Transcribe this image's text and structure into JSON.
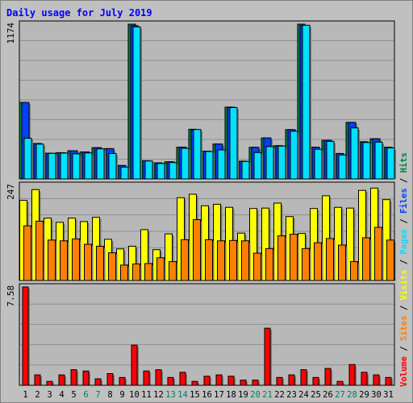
{
  "chart_data": {
    "type": "bar",
    "title": "Daily usage for July 2019",
    "categories": [
      "1",
      "2",
      "3",
      "4",
      "5",
      "6",
      "7",
      "8",
      "9",
      "10",
      "11",
      "12",
      "13",
      "14",
      "15",
      "16",
      "17",
      "18",
      "19",
      "20",
      "21",
      "22",
      "23",
      "24",
      "25",
      "26",
      "27",
      "28",
      "29",
      "30",
      "31"
    ],
    "weekend_days": [
      "6",
      "7",
      "13",
      "14",
      "20",
      "21",
      "27",
      "28"
    ],
    "legend": [
      "Volume",
      "Sites",
      "Visits",
      "Pages",
      "Files",
      "Hits"
    ],
    "legend_separator": "/",
    "panels": [
      {
        "id": "top",
        "max_label": "1174",
        "ylim": [
          0,
          1174
        ],
        "series": [
          {
            "name": "Hits",
            "color": "#008040",
            "values": [
              580,
              269,
              195,
              199,
              214,
              205,
              237,
              230,
              102,
              1174,
              138,
              122,
              130,
              241,
              377,
              211,
              265,
              545,
              135,
              240,
              311,
              252,
              374,
              1174,
              241,
              293,
              193,
              429,
              282,
              305,
              241
            ]
          },
          {
            "name": "Files",
            "color": "#0040ff",
            "values": [
              580,
              269,
              195,
              199,
              214,
              205,
              237,
              230,
              102,
              1163,
              138,
              122,
              130,
              241,
              371,
              211,
              265,
              545,
              135,
              240,
              311,
              252,
              374,
              1165,
              241,
              293,
              193,
              429,
              282,
              305,
              241
            ]
          },
          {
            "name": "Pages",
            "color": "#00e0ff",
            "values": [
              309,
              264,
              194,
              196,
              190,
              197,
              228,
              193,
              90,
              1153,
              136,
              117,
              124,
              232,
              375,
              208,
              220,
              541,
              133,
              200,
              245,
              249,
              362,
              1166,
              225,
              285,
              182,
              387,
              276,
              279,
              235
            ]
          }
        ]
      },
      {
        "id": "middle",
        "max_label": "247",
        "ylim": [
          0,
          247
        ],
        "series": [
          {
            "name": "Visits",
            "color": "#ffff00",
            "values": [
              208,
              236,
              162,
              151,
              162,
              153,
              164,
              107,
              82,
              89,
              132,
              80,
              121,
              215,
              224,
              194,
              198,
              190,
              123,
              187,
              188,
              201,
              166,
              122,
              187,
              220,
              190,
              188,
              234,
              240,
              210
            ]
          },
          {
            "name": "Sites",
            "color": "#ff8000",
            "values": [
              142,
              154,
              105,
              103,
              108,
              94,
              89,
              72,
              40,
              43,
              44,
              59,
              49,
              106,
              158,
              106,
              103,
              104,
              103,
              71,
              83,
              116,
              120,
              83,
              98,
              109,
              92,
              49,
              111,
              138,
              105
            ]
          }
        ]
      },
      {
        "id": "bottom",
        "max_label": "7.58",
        "ylim": [
          0,
          7.58
        ],
        "series": [
          {
            "name": "Volume",
            "color": "#ff0000",
            "values": [
              7.58,
              0.8,
              0.3,
              0.8,
              1.2,
              1.1,
              0.5,
              0.9,
              0.6,
              3.1,
              1.1,
              1.2,
              0.6,
              1.0,
              0.3,
              0.7,
              0.8,
              0.7,
              0.4,
              0.4,
              4.4,
              0.6,
              0.8,
              1.2,
              0.6,
              1.3,
              0.3,
              1.6,
              1.0,
              0.8,
              0.6
            ]
          }
        ]
      }
    ],
    "colors": {
      "background": "#c0c0c0",
      "plot_area": "#b8b8b8",
      "title": "#0000ff",
      "weekend_label": "#00805c",
      "weekday_label": "#000000",
      "legend_volume": "#ff0000",
      "legend_sites": "#ff8000",
      "legend_visits": "#ffff00",
      "legend_pages": "#00e0ff",
      "legend_files": "#0040ff",
      "legend_hits": "#008040"
    }
  }
}
